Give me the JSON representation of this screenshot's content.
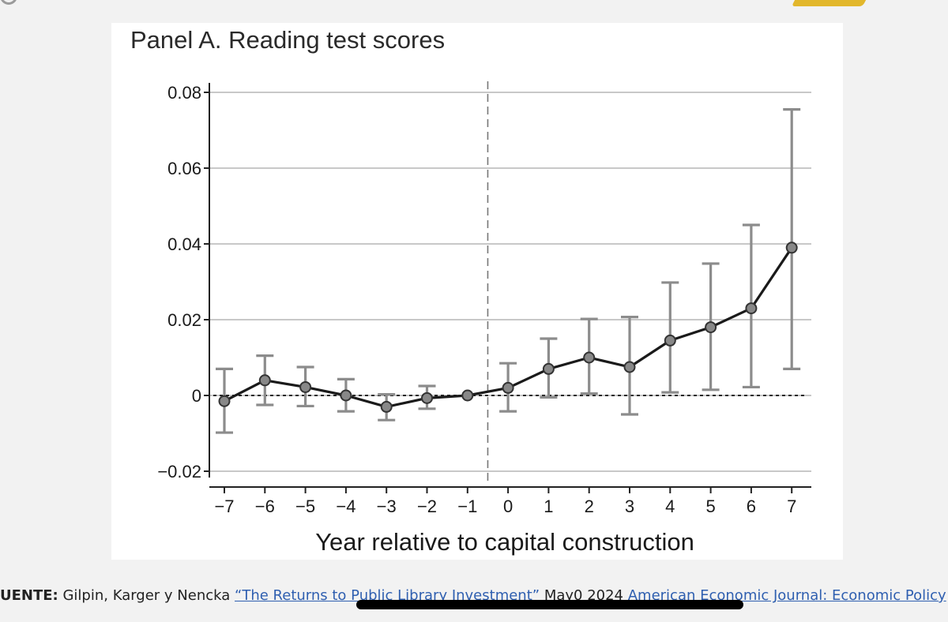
{
  "chart_data": {
    "type": "line",
    "title": "Panel A. Reading test scores",
    "xlabel": "Year relative to capital construction",
    "ylabel": "",
    "x": [
      -7,
      -6,
      -5,
      -4,
      -3,
      -2,
      -1,
      0,
      1,
      2,
      3,
      4,
      5,
      6,
      7
    ],
    "x_tick_labels": [
      "−7",
      "−6",
      "−5",
      "−4",
      "−3",
      "−2",
      "−1",
      "0",
      "1",
      "2",
      "3",
      "4",
      "5",
      "6",
      "7"
    ],
    "y_ticks": [
      -0.02,
      0,
      0.02,
      0.04,
      0.06,
      0.08
    ],
    "y_tick_labels": [
      "−0.02",
      "0",
      "0.02",
      "0.04",
      "0.06",
      "0.08"
    ],
    "ylim": [
      -0.02,
      0.08
    ],
    "grid": true,
    "reference_line_x": -0.5,
    "reference_line_y": 0,
    "series": [
      {
        "values": [
          -0.0015,
          0.004,
          0.0022,
          0.0,
          -0.003,
          -0.0007,
          0.0,
          0.002,
          0.007,
          0.01,
          0.0075,
          0.0145,
          0.018,
          0.023,
          0.039
        ],
        "ci_low": [
          -0.0098,
          -0.0025,
          -0.0028,
          -0.0042,
          -0.0065,
          -0.0035,
          0.0,
          -0.0042,
          -0.0005,
          0.0005,
          -0.005,
          0.0008,
          0.0015,
          0.0022,
          0.007
        ],
        "ci_high": [
          0.007,
          0.0105,
          0.0075,
          0.0043,
          0.0003,
          0.0025,
          0.0,
          0.0085,
          0.015,
          0.0202,
          0.0207,
          0.0298,
          0.0348,
          0.045,
          0.0755
        ]
      }
    ],
    "colors": {
      "line": "#1a1a1a",
      "ci": "#8c8c8c",
      "marker_fill": "#888888",
      "grid": "#c8c8c8"
    }
  },
  "footer": {
    "label": "UENTE:",
    "authors": " Gilpin, Karger y Nencka ",
    "article_link": "“The Returns to Public Library Investment”",
    "date": " May0 2024 ",
    "journal_link": "American Economic Journal: Economic Policy"
  }
}
